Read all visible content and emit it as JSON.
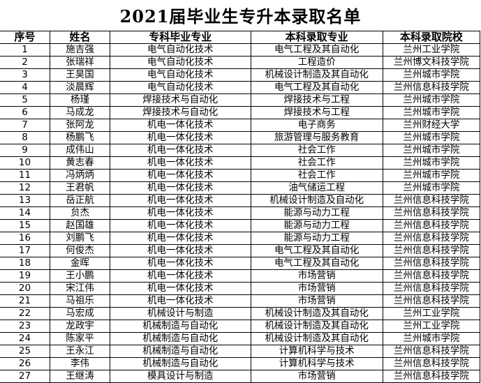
{
  "title": "2021届毕业生专升本录取名单",
  "headers": [
    "序号",
    "姓名",
    "专科毕业专业",
    "本科录取专业",
    "本科录取院校"
  ],
  "rows": [
    [
      "1",
      "施吉强",
      "电气自动化技术",
      "电气工程及其自动化",
      "兰州工业学院"
    ],
    [
      "2",
      "张瑞祥",
      "电气自动化技术",
      "工程造价",
      "兰州博文科技学院"
    ],
    [
      "3",
      "王昊国",
      "电气自动化技术",
      "机械设计制造及其自动化",
      "兰州城市学院"
    ],
    [
      "4",
      "淡晨辉",
      "电气自动化技术",
      "电气工程及其自动化",
      "兰州信息科技学院"
    ],
    [
      "5",
      "杨瑾",
      "焊接技术与自动化",
      "焊接技术与工程",
      "兰州城市学院"
    ],
    [
      "6",
      "马成龙",
      "焊接技术与自动化",
      "焊接技术与工程",
      "兰州城市学院"
    ],
    [
      "7",
      "张阿龙",
      "机电一体化技术",
      "电子商务",
      "兰州财经大学"
    ],
    [
      "8",
      "杨鹏飞",
      "机电一体化技术",
      "旅游管理与服务教育",
      "兰州城市学院"
    ],
    [
      "9",
      "成伟山",
      "机电一体化技术",
      "社会工作",
      "兰州城市学院"
    ],
    [
      "10",
      "黄志春",
      "机电一体化技术",
      "社会工作",
      "兰州城市学院"
    ],
    [
      "11",
      "冯炳炳",
      "机电一体化技术",
      "社会工作",
      "兰州城市学院"
    ],
    [
      "12",
      "王君帆",
      "机电一体化技术",
      "油气储运工程",
      "兰州城市学院"
    ],
    [
      "13",
      "岳正航",
      "机电一体化技术",
      "机械设计制造及自动化",
      "兰州信息科技学院"
    ],
    [
      "14",
      "贠杰",
      "机电一体化技术",
      "能源与动力工程",
      "兰州信息科技学院"
    ],
    [
      "15",
      "赵国雄",
      "机电一体化技术",
      "能源与动力工程",
      "兰州信息科技学院"
    ],
    [
      "16",
      "刘鹏飞",
      "机电一体化技术",
      "能源与动力工程",
      "兰州信息科技学院"
    ],
    [
      "17",
      "何俊杰",
      "机电一体化技术",
      "电气工程及其自动化",
      "兰州信息科技学院"
    ],
    [
      "18",
      "金晖",
      "机电一体化技术",
      "电气工程及其自动化",
      "兰州信息科技学院"
    ],
    [
      "19",
      "王小鹏",
      "机电一体化技术",
      "市场营销",
      "兰州信息科技学院"
    ],
    [
      "20",
      "宋江伟",
      "机电一体化技术",
      "市场营销",
      "兰州信息科技学院"
    ],
    [
      "21",
      "马祖乐",
      "机电一体化技术",
      "市场营销",
      "兰州信息科技学院"
    ],
    [
      "22",
      "马宏成",
      "机械设计与制造",
      "机械设计制造及其自动化",
      "兰州工业学院"
    ],
    [
      "23",
      "龙政宇",
      "机械制造与自动化",
      "机械设计制造及其自动化",
      "兰州工业学院"
    ],
    [
      "24",
      "陈家平",
      "机械制造与自动化",
      "机械设计制造及其自动化",
      "兰州城市学院"
    ],
    [
      "25",
      "王永江",
      "机械制造与自动化",
      "计算机科学与技术",
      "兰州信息科技学院"
    ],
    [
      "26",
      "李伟",
      "机械制造与自动化",
      "计算机科学与技术",
      "兰州信息科技学院"
    ],
    [
      "27",
      "王继涛",
      "模具设计与制造",
      "市场营销",
      "兰州信息科技学院"
    ]
  ]
}
